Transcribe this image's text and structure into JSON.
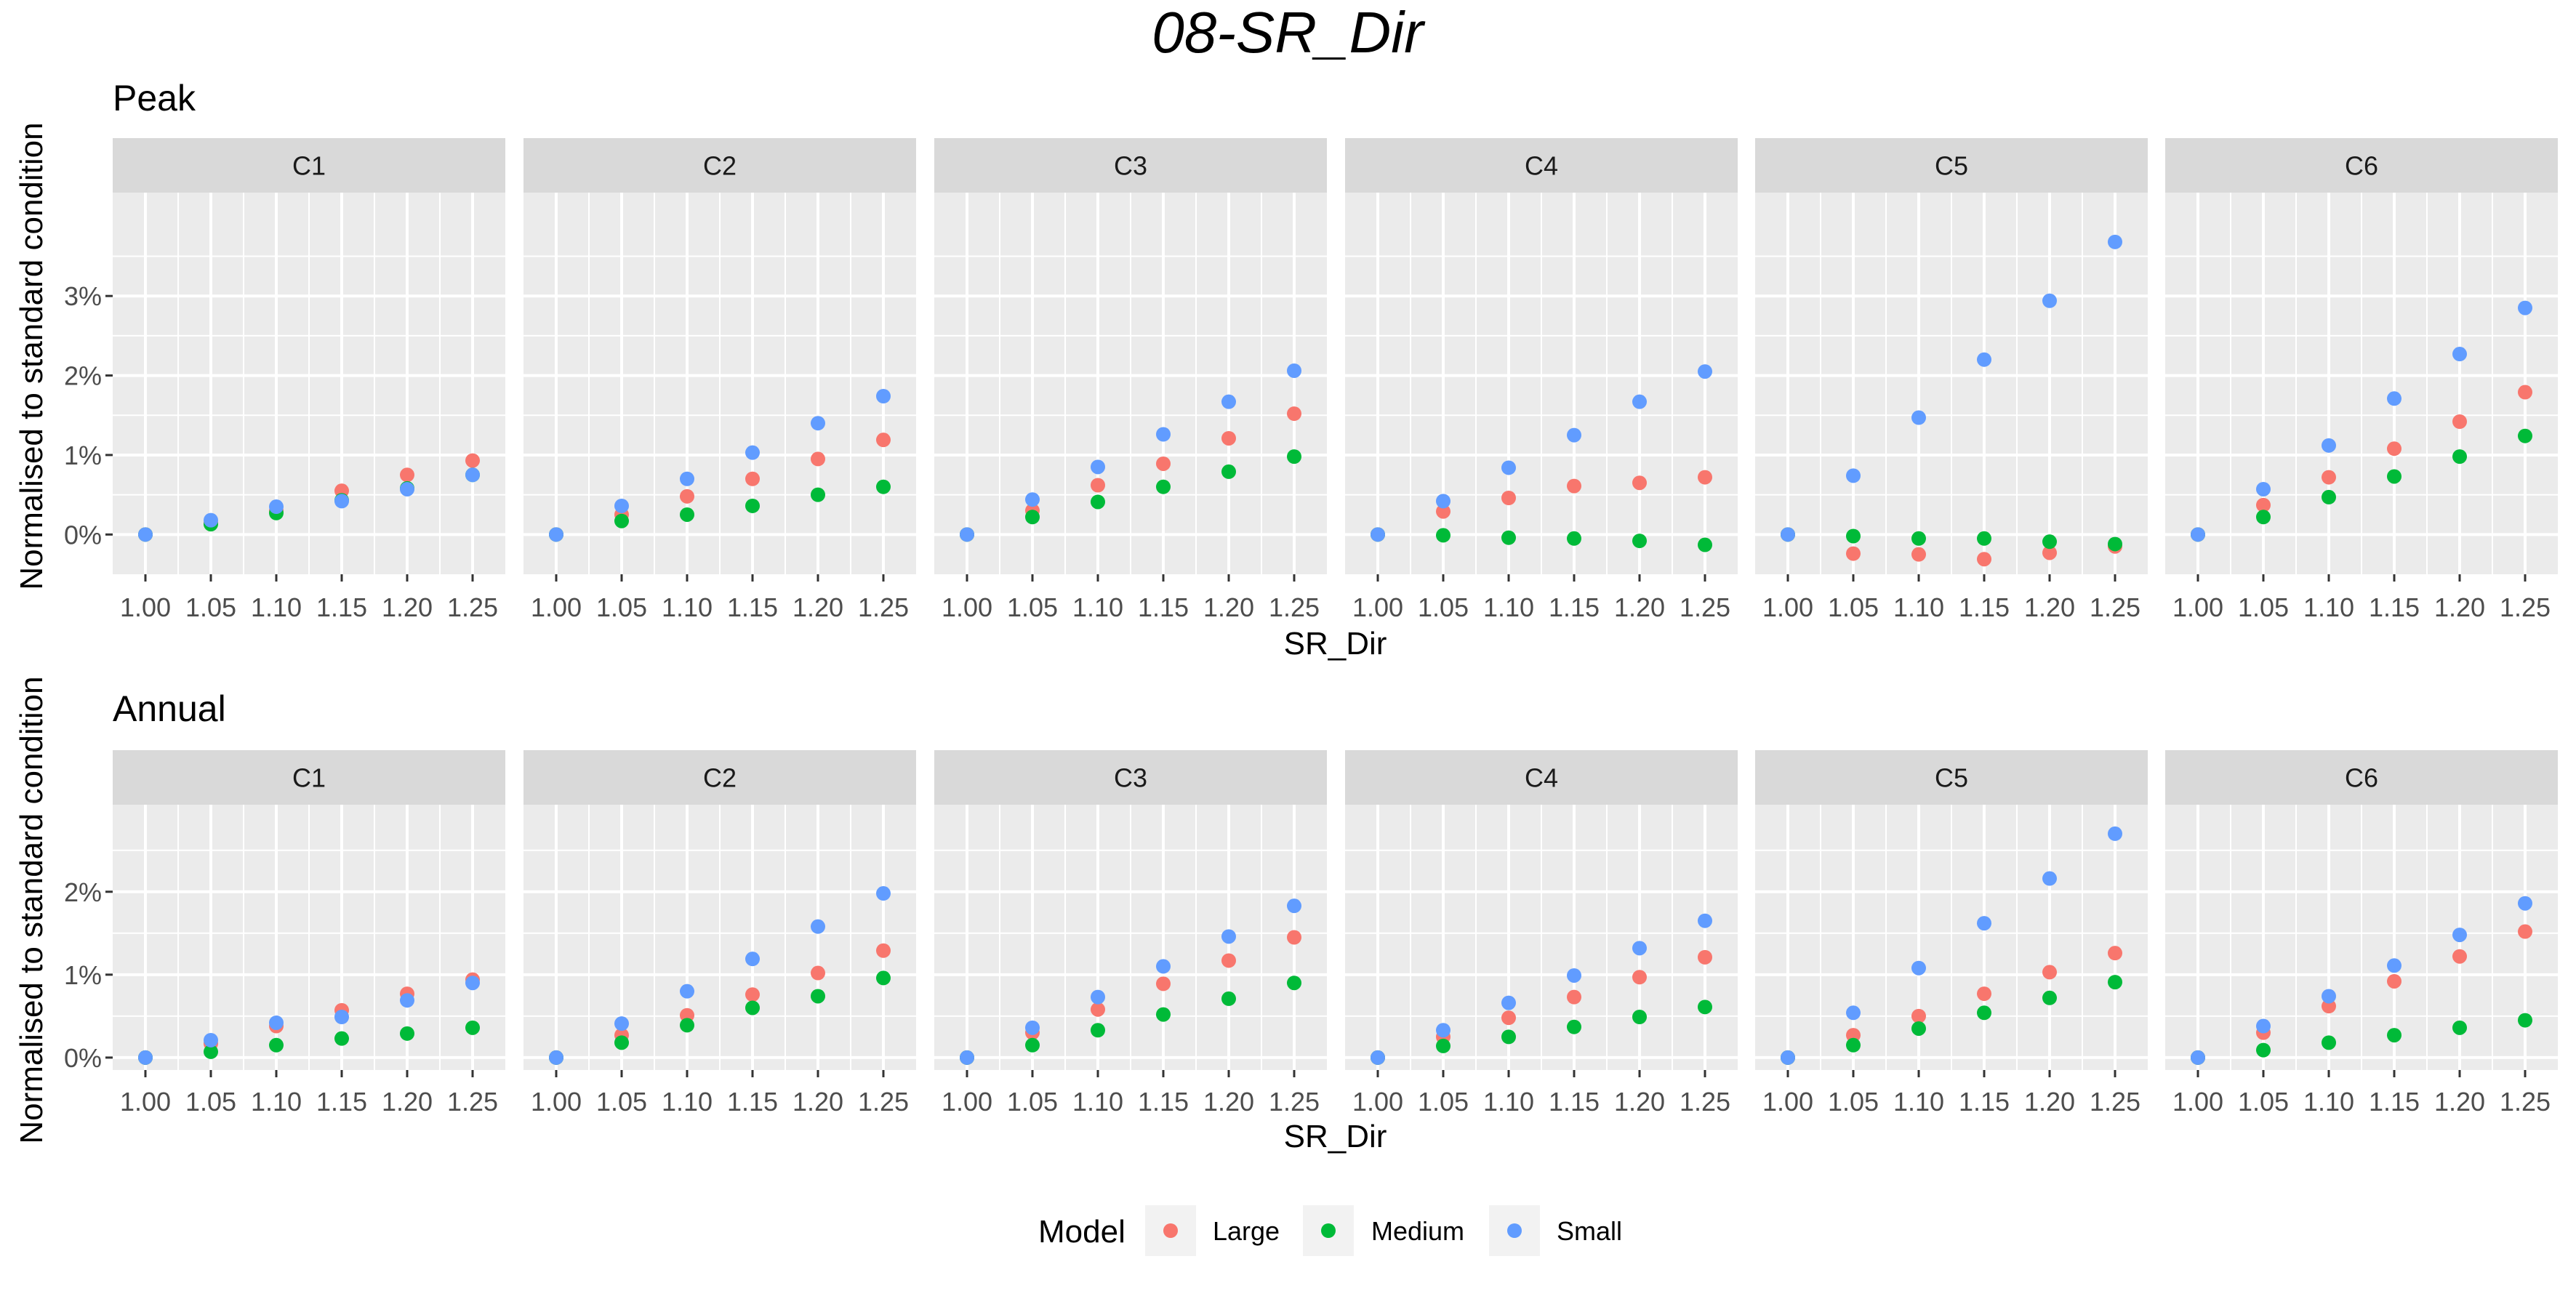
{
  "chart_data": {
    "type": "scatter",
    "title": "08-SR_Dir",
    "xlabel": "SR_Dir",
    "ylabel": "Normalised to standard condition",
    "x": [
      1.0,
      1.05,
      1.1,
      1.15,
      1.2,
      1.25
    ],
    "x_tick_labels": [
      "1.00",
      "1.05",
      "1.10",
      "1.15",
      "1.20",
      "1.25"
    ],
    "facets": [
      "C1",
      "C2",
      "C3",
      "C4",
      "C5",
      "C6"
    ],
    "legend": {
      "title": "Model",
      "position": "bottom",
      "entries": [
        {
          "name": "Large",
          "color": "#F8766D"
        },
        {
          "name": "Medium",
          "color": "#00BA38"
        },
        {
          "name": "Small",
          "color": "#619CFF"
        }
      ]
    },
    "grid": true,
    "panels": [
      {
        "name": "Peak",
        "ylim": [
          -0.5,
          4.3
        ],
        "y_ticks": [
          0,
          1,
          2,
          3
        ],
        "y_tick_labels": [
          "0%",
          "1%",
          "2%",
          "3%"
        ],
        "facets": {
          "C1": {
            "Large": [
              0,
              0.15,
              0.3,
              0.55,
              0.75,
              0.93
            ],
            "Medium": [
              0,
              0.13,
              0.27,
              0.43,
              0.58,
              0.75
            ],
            "Small": [
              0,
              0.18,
              0.35,
              0.42,
              0.57,
              0.75
            ]
          },
          "C2": {
            "Large": [
              0,
              0.25,
              0.48,
              0.7,
              0.95,
              1.19
            ],
            "Medium": [
              0,
              0.17,
              0.25,
              0.36,
              0.5,
              0.6
            ],
            "Small": [
              0,
              0.36,
              0.7,
              1.03,
              1.4,
              1.74
            ]
          },
          "C3": {
            "Large": [
              0,
              0.3,
              0.62,
              0.89,
              1.21,
              1.52
            ],
            "Medium": [
              0,
              0.22,
              0.41,
              0.6,
              0.79,
              0.98
            ],
            "Small": [
              0,
              0.44,
              0.85,
              1.26,
              1.67,
              2.06
            ]
          },
          "C4": {
            "Large": [
              0,
              0.29,
              0.46,
              0.61,
              0.65,
              0.72
            ],
            "Medium": [
              0,
              -0.01,
              -0.04,
              -0.05,
              -0.08,
              -0.13
            ],
            "Small": [
              0,
              0.42,
              0.84,
              1.25,
              1.67,
              2.05
            ]
          },
          "C5": {
            "Large": [
              0,
              -0.24,
              -0.25,
              -0.31,
              -0.23,
              -0.15
            ],
            "Medium": [
              0,
              -0.02,
              -0.05,
              -0.05,
              -0.09,
              -0.12
            ],
            "Small": [
              0,
              0.74,
              1.47,
              2.2,
              2.94,
              3.68
            ]
          },
          "C6": {
            "Large": [
              0,
              0.37,
              0.72,
              1.08,
              1.42,
              1.79
            ],
            "Medium": [
              0,
              0.22,
              0.47,
              0.73,
              0.98,
              1.24
            ],
            "Small": [
              0,
              0.57,
              1.12,
              1.71,
              2.27,
              2.85
            ]
          }
        }
      },
      {
        "name": "Annual",
        "ylim": [
          -0.15,
          3.05
        ],
        "y_ticks": [
          0,
          1,
          2
        ],
        "y_tick_labels": [
          "0%",
          "1%",
          "2%"
        ],
        "facets": {
          "C1": {
            "Large": [
              0,
              0.17,
              0.38,
              0.57,
              0.77,
              0.94
            ],
            "Medium": [
              0,
              0.07,
              0.15,
              0.23,
              0.29,
              0.36
            ],
            "Small": [
              0,
              0.21,
              0.42,
              0.49,
              0.69,
              0.9
            ]
          },
          "C2": {
            "Large": [
              0,
              0.27,
              0.51,
              0.76,
              1.02,
              1.29
            ],
            "Medium": [
              0,
              0.18,
              0.39,
              0.6,
              0.74,
              0.96
            ],
            "Small": [
              0,
              0.41,
              0.8,
              1.19,
              1.58,
              1.98
            ]
          },
          "C3": {
            "Large": [
              0,
              0.3,
              0.58,
              0.89,
              1.17,
              1.45
            ],
            "Medium": [
              0,
              0.15,
              0.33,
              0.52,
              0.71,
              0.9
            ],
            "Small": [
              0,
              0.36,
              0.73,
              1.1,
              1.46,
              1.83
            ]
          },
          "C4": {
            "Large": [
              0,
              0.25,
              0.48,
              0.73,
              0.97,
              1.21
            ],
            "Medium": [
              0,
              0.14,
              0.25,
              0.37,
              0.49,
              0.61
            ],
            "Small": [
              0,
              0.33,
              0.66,
              0.99,
              1.32,
              1.65
            ]
          },
          "C5": {
            "Large": [
              0,
              0.27,
              0.5,
              0.77,
              1.03,
              1.26
            ],
            "Medium": [
              0,
              0.15,
              0.35,
              0.54,
              0.72,
              0.91
            ],
            "Small": [
              0,
              0.54,
              1.08,
              1.62,
              2.16,
              2.7
            ]
          },
          "C6": {
            "Large": [
              0,
              0.3,
              0.62,
              0.92,
              1.22,
              1.52
            ],
            "Medium": [
              0,
              0.09,
              0.18,
              0.27,
              0.36,
              0.45
            ],
            "Small": [
              0,
              0.38,
              0.74,
              1.11,
              1.48,
              1.86
            ]
          }
        }
      }
    ]
  }
}
